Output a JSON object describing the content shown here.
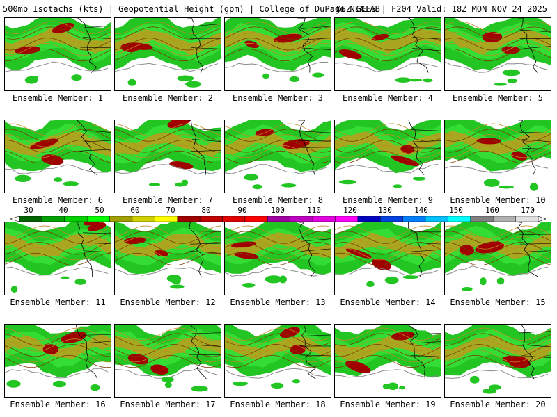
{
  "header": {
    "left": "500mb Isotachs (kts) | Geopotential Height (gpm) | College of DuPage NEXLAB",
    "right": "06Z GEFS | F204 Valid: 18Z MON NOV 24 2025"
  },
  "panels": [
    {
      "label": "Ensemble Member: 1"
    },
    {
      "label": "Ensemble Member: 2"
    },
    {
      "label": "Ensemble Member: 3"
    },
    {
      "label": "Ensemble Member: 4"
    },
    {
      "label": "Ensemble Member: 5"
    },
    {
      "label": "Ensemble Member: 6"
    },
    {
      "label": "Ensemble Member: 7"
    },
    {
      "label": "Ensemble Member: 8"
    },
    {
      "label": "Ensemble Member: 9"
    },
    {
      "label": "Ensemble Member: 10"
    },
    {
      "label": "Ensemble Member: 11"
    },
    {
      "label": "Ensemble Member: 12"
    },
    {
      "label": "Ensemble Member: 13"
    },
    {
      "label": "Ensemble Member: 14"
    },
    {
      "label": "Ensemble Member: 15"
    },
    {
      "label": "Ensemble Member: 16"
    },
    {
      "label": "Ensemble Member: 17"
    },
    {
      "label": "Ensemble Member: 18"
    },
    {
      "label": "Ensemble Member: 19"
    },
    {
      "label": "Ensemble Member: 20"
    }
  ],
  "scale": {
    "ticks": [
      "30",
      "40",
      "50",
      "60",
      "70",
      "80",
      "90",
      "100",
      "110",
      "120",
      "130",
      "140",
      "150",
      "160",
      "170"
    ],
    "colors": [
      "#006400",
      "#00a000",
      "#00d000",
      "#00ff00",
      "#a0a000",
      "#d0d000",
      "#ffff00",
      "#a00000",
      "#c00000",
      "#e00000",
      "#ff0000",
      "#a000a0",
      "#c000c0",
      "#e000e0",
      "#ff00ff",
      "#0000c0",
      "#0040e0",
      "#0080ff",
      "#00c0ff",
      "#00ffff",
      "#808080",
      "#b0b0b0",
      "#e0e0e0"
    ]
  }
}
